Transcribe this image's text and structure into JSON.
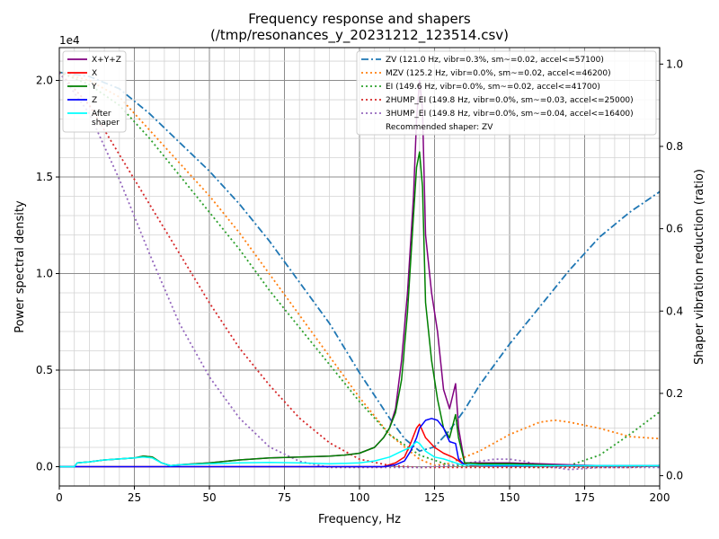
{
  "chart_data": {
    "type": "line",
    "title": "Frequency response and shapers",
    "subtitle": "(/tmp/resonances_y_20231212_123514.csv)",
    "xlabel": "Frequency, Hz",
    "ylabel": "Power spectral density",
    "y2label": "Shaper vibration reduction (ratio)",
    "y_multiplier": "1e4",
    "xlim": [
      0,
      200
    ],
    "ylim": [
      -0.1,
      2.17
    ],
    "y2lim": [
      -0.025,
      1.04
    ],
    "x_ticks": [
      0,
      25,
      50,
      75,
      100,
      125,
      150,
      175,
      200
    ],
    "y_ticks": [
      0.0,
      0.5,
      1.0,
      1.5,
      2.0
    ],
    "y_tick_labels": [
      "0.0",
      "0.5",
      "1.0",
      "1.5",
      "2.0"
    ],
    "y2_ticks": [
      0.0,
      0.2,
      0.4,
      0.6,
      0.8,
      1.0
    ],
    "y2_tick_labels": [
      "0.0",
      "0.2",
      "0.4",
      "0.6",
      "0.8",
      "1.0"
    ],
    "grid": true,
    "minor_grid": true,
    "legend_left": [
      "X+Y+Z",
      "X",
      "Y",
      "Z",
      "After\nshaper"
    ],
    "legend_right": [
      "ZV (121.0 Hz, vibr=0.3%, sm~=0.02, accel<=57100)",
      "MZV (125.2 Hz, vibr=0.0%, sm~=0.02, accel<=46200)",
      "EI (149.6 Hz, vibr=0.0%, sm~=0.02, accel<=41700)",
      "2HUMP_EI (149.8 Hz, vibr=0.0%, sm~=0.03, accel<=25000)",
      "3HUMP_EI (149.8 Hz, vibr=0.0%, sm~=0.04, accel<=16400)"
    ],
    "recommended": "Recommended shaper: ZV",
    "psd_series": [
      {
        "name": "X+Y+Z",
        "color": "#800080",
        "width": 1.5,
        "points": [
          [
            0,
            0
          ],
          [
            5,
            0
          ],
          [
            6,
            0.02
          ],
          [
            10,
            0.025
          ],
          [
            15,
            0.035
          ],
          [
            20,
            0.04
          ],
          [
            25,
            0.045
          ],
          [
            28,
            0.055
          ],
          [
            31,
            0.05
          ],
          [
            34,
            0.02
          ],
          [
            37,
            0.005
          ],
          [
            40,
            0.01
          ],
          [
            50,
            0.02
          ],
          [
            60,
            0.035
          ],
          [
            70,
            0.045
          ],
          [
            80,
            0.05
          ],
          [
            90,
            0.055
          ],
          [
            95,
            0.06
          ],
          [
            100,
            0.07
          ],
          [
            105,
            0.1
          ],
          [
            108,
            0.15
          ],
          [
            110,
            0.2
          ],
          [
            112,
            0.3
          ],
          [
            114,
            0.55
          ],
          [
            116,
            0.9
          ],
          [
            118,
            1.4
          ],
          [
            119,
            1.8
          ],
          [
            120,
            2.0
          ],
          [
            121,
            1.85
          ],
          [
            122,
            1.2
          ],
          [
            124,
            0.9
          ],
          [
            126,
            0.7
          ],
          [
            128,
            0.4
          ],
          [
            130,
            0.3
          ],
          [
            132,
            0.43
          ],
          [
            133,
            0.2
          ],
          [
            135,
            0.02
          ],
          [
            140,
            0.02
          ],
          [
            150,
            0.02
          ],
          [
            160,
            0.015
          ],
          [
            170,
            0.01
          ],
          [
            180,
            0.005
          ],
          [
            190,
            0.005
          ],
          [
            200,
            0.005
          ]
        ]
      },
      {
        "name": "X",
        "color": "#ff0000",
        "width": 1.5,
        "points": [
          [
            0,
            0
          ],
          [
            100,
            0
          ],
          [
            108,
            0
          ],
          [
            112,
            0.02
          ],
          [
            115,
            0.05
          ],
          [
            117,
            0.12
          ],
          [
            119,
            0.2
          ],
          [
            120,
            0.22
          ],
          [
            122,
            0.15
          ],
          [
            125,
            0.1
          ],
          [
            128,
            0.07
          ],
          [
            131,
            0.05
          ],
          [
            134,
            0.02
          ],
          [
            137,
            0.005
          ],
          [
            145,
            0.005
          ],
          [
            200,
            0.005
          ]
        ]
      },
      {
        "name": "Y",
        "color": "#008000",
        "width": 1.5,
        "points": [
          [
            0,
            0
          ],
          [
            5,
            0
          ],
          [
            6,
            0.02
          ],
          [
            10,
            0.025
          ],
          [
            15,
            0.035
          ],
          [
            20,
            0.04
          ],
          [
            25,
            0.045
          ],
          [
            28,
            0.055
          ],
          [
            31,
            0.05
          ],
          [
            34,
            0.02
          ],
          [
            37,
            0.005
          ],
          [
            40,
            0.01
          ],
          [
            50,
            0.02
          ],
          [
            60,
            0.035
          ],
          [
            70,
            0.045
          ],
          [
            80,
            0.05
          ],
          [
            90,
            0.055
          ],
          [
            95,
            0.06
          ],
          [
            100,
            0.07
          ],
          [
            105,
            0.1
          ],
          [
            108,
            0.15
          ],
          [
            110,
            0.2
          ],
          [
            112,
            0.28
          ],
          [
            114,
            0.45
          ],
          [
            116,
            0.8
          ],
          [
            118,
            1.3
          ],
          [
            119,
            1.55
          ],
          [
            120,
            1.63
          ],
          [
            121,
            1.45
          ],
          [
            122,
            0.85
          ],
          [
            124,
            0.55
          ],
          [
            126,
            0.35
          ],
          [
            128,
            0.2
          ],
          [
            130,
            0.15
          ],
          [
            132,
            0.27
          ],
          [
            133,
            0.15
          ],
          [
            135,
            0.02
          ],
          [
            140,
            0.015
          ],
          [
            150,
            0.015
          ],
          [
            160,
            0.01
          ],
          [
            170,
            0.005
          ],
          [
            200,
            0.005
          ]
        ]
      },
      {
        "name": "Z",
        "color": "#0000ff",
        "width": 1.5,
        "points": [
          [
            0,
            0
          ],
          [
            100,
            0
          ],
          [
            108,
            0
          ],
          [
            112,
            0.01
          ],
          [
            115,
            0.03
          ],
          [
            117,
            0.08
          ],
          [
            119,
            0.15
          ],
          [
            120,
            0.2
          ],
          [
            122,
            0.24
          ],
          [
            124,
            0.25
          ],
          [
            126,
            0.24
          ],
          [
            128,
            0.2
          ],
          [
            130,
            0.13
          ],
          [
            132,
            0.12
          ],
          [
            133,
            0.04
          ],
          [
            135,
            0.01
          ],
          [
            145,
            0.005
          ],
          [
            200,
            0.005
          ]
        ]
      },
      {
        "name": "After\nshaper",
        "color": "#00ffff",
        "width": 1.5,
        "points": [
          [
            0,
            0
          ],
          [
            5,
            0
          ],
          [
            6,
            0.02
          ],
          [
            10,
            0.025
          ],
          [
            15,
            0.035
          ],
          [
            20,
            0.04
          ],
          [
            25,
            0.045
          ],
          [
            28,
            0.05
          ],
          [
            31,
            0.045
          ],
          [
            34,
            0.02
          ],
          [
            37,
            0.005
          ],
          [
            40,
            0.01
          ],
          [
            50,
            0.015
          ],
          [
            60,
            0.02
          ],
          [
            70,
            0.022
          ],
          [
            80,
            0.02
          ],
          [
            90,
            0.015
          ],
          [
            100,
            0.02
          ],
          [
            105,
            0.03
          ],
          [
            110,
            0.05
          ],
          [
            114,
            0.08
          ],
          [
            117,
            0.1
          ],
          [
            119,
            0.13
          ],
          [
            120,
            0.12
          ],
          [
            122,
            0.08
          ],
          [
            125,
            0.05
          ],
          [
            128,
            0.04
          ],
          [
            131,
            0.025
          ],
          [
            134,
            0.01
          ],
          [
            140,
            0.008
          ],
          [
            150,
            0.008
          ],
          [
            160,
            0.006
          ],
          [
            180,
            0.005
          ],
          [
            200,
            0.005
          ]
        ]
      }
    ],
    "shaper_series": [
      {
        "name": "ZV",
        "color": "#1f77b4",
        "dash": "8,3,2,3",
        "width": 1.8,
        "points": [
          [
            0,
            0.98
          ],
          [
            10,
            0.97
          ],
          [
            20,
            0.94
          ],
          [
            30,
            0.88
          ],
          [
            40,
            0.81
          ],
          [
            50,
            0.74
          ],
          [
            60,
            0.66
          ],
          [
            70,
            0.57
          ],
          [
            80,
            0.47
          ],
          [
            90,
            0.37
          ],
          [
            100,
            0.25
          ],
          [
            110,
            0.14
          ],
          [
            115,
            0.09
          ],
          [
            120,
            0.06
          ],
          [
            125,
            0.07
          ],
          [
            130,
            0.11
          ],
          [
            135,
            0.16
          ],
          [
            140,
            0.22
          ],
          [
            150,
            0.32
          ],
          [
            160,
            0.41
          ],
          [
            170,
            0.5
          ],
          [
            180,
            0.58
          ],
          [
            190,
            0.64
          ],
          [
            200,
            0.69
          ]
        ]
      },
      {
        "name": "MZV",
        "color": "#ff7f0e",
        "dash": "2,3",
        "width": 1.8,
        "points": [
          [
            0,
            0.98
          ],
          [
            10,
            0.96
          ],
          [
            20,
            0.92
          ],
          [
            30,
            0.84
          ],
          [
            40,
            0.76
          ],
          [
            50,
            0.68
          ],
          [
            60,
            0.59
          ],
          [
            70,
            0.49
          ],
          [
            80,
            0.39
          ],
          [
            90,
            0.29
          ],
          [
            100,
            0.19
          ],
          [
            110,
            0.1
          ],
          [
            115,
            0.07
          ],
          [
            120,
            0.04
          ],
          [
            125,
            0.025
          ],
          [
            130,
            0.03
          ],
          [
            135,
            0.045
          ],
          [
            140,
            0.06
          ],
          [
            150,
            0.1
          ],
          [
            160,
            0.13
          ],
          [
            165,
            0.135
          ],
          [
            170,
            0.13
          ],
          [
            180,
            0.115
          ],
          [
            190,
            0.095
          ],
          [
            200,
            0.09
          ]
        ]
      },
      {
        "name": "EI",
        "color": "#2ca02c",
        "dash": "2,3",
        "width": 1.8,
        "points": [
          [
            0,
            0.98
          ],
          [
            10,
            0.95
          ],
          [
            20,
            0.9
          ],
          [
            30,
            0.82
          ],
          [
            40,
            0.73
          ],
          [
            50,
            0.64
          ],
          [
            60,
            0.55
          ],
          [
            70,
            0.45
          ],
          [
            80,
            0.36
          ],
          [
            90,
            0.27
          ],
          [
            100,
            0.18
          ],
          [
            110,
            0.1
          ],
          [
            120,
            0.05
          ],
          [
            130,
            0.025
          ],
          [
            140,
            0.025
          ],
          [
            150,
            0.025
          ],
          [
            160,
            0.02
          ],
          [
            170,
            0.025
          ],
          [
            180,
            0.05
          ],
          [
            190,
            0.1
          ],
          [
            200,
            0.155
          ]
        ]
      },
      {
        "name": "2HUMP_EI",
        "color": "#d62728",
        "dash": "2,3",
        "width": 1.8,
        "points": [
          [
            0,
            0.98
          ],
          [
            10,
            0.9
          ],
          [
            20,
            0.78
          ],
          [
            30,
            0.66
          ],
          [
            40,
            0.54
          ],
          [
            50,
            0.42
          ],
          [
            60,
            0.31
          ],
          [
            70,
            0.22
          ],
          [
            80,
            0.14
          ],
          [
            90,
            0.08
          ],
          [
            100,
            0.04
          ],
          [
            110,
            0.025
          ],
          [
            120,
            0.02
          ],
          [
            130,
            0.02
          ],
          [
            140,
            0.02
          ],
          [
            150,
            0.02
          ],
          [
            160,
            0.02
          ],
          [
            170,
            0.02
          ],
          [
            180,
            0.02
          ],
          [
            190,
            0.02
          ],
          [
            200,
            0.025
          ]
        ]
      },
      {
        "name": "3HUMP_EI",
        "color": "#9467bd",
        "dash": "2,3",
        "width": 1.8,
        "points": [
          [
            0,
            0.98
          ],
          [
            10,
            0.88
          ],
          [
            20,
            0.72
          ],
          [
            30,
            0.54
          ],
          [
            40,
            0.37
          ],
          [
            50,
            0.24
          ],
          [
            60,
            0.14
          ],
          [
            70,
            0.07
          ],
          [
            80,
            0.035
          ],
          [
            90,
            0.02
          ],
          [
            100,
            0.02
          ],
          [
            110,
            0.02
          ],
          [
            120,
            0.02
          ],
          [
            130,
            0.025
          ],
          [
            140,
            0.035
          ],
          [
            145,
            0.04
          ],
          [
            150,
            0.04
          ],
          [
            155,
            0.035
          ],
          [
            160,
            0.025
          ],
          [
            170,
            0.015
          ],
          [
            180,
            0.02
          ],
          [
            190,
            0.02
          ],
          [
            200,
            0.02
          ]
        ]
      }
    ]
  }
}
